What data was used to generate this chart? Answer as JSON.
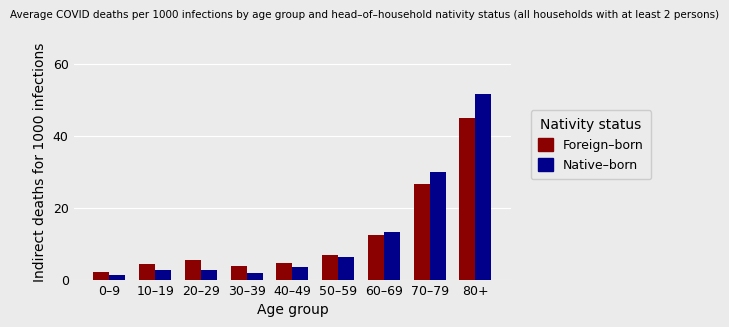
{
  "title": "Average COVID deaths per 1000 infections by age group and head–of–household nativity status (all households with at least 2 persons)",
  "xlabel": "Age group",
  "ylabel": "Indirect deaths for 1000 infections",
  "age_groups": [
    "0–9",
    "10–19",
    "20–29",
    "30–39",
    "40–49",
    "50–59",
    "60–69",
    "70–79",
    "80+"
  ],
  "foreign_born": [
    2.0,
    4.2,
    5.5,
    3.8,
    4.6,
    6.8,
    12.5,
    26.5,
    45.0
  ],
  "native_born": [
    1.2,
    2.6,
    2.8,
    1.8,
    3.5,
    6.2,
    13.2,
    30.0,
    51.5
  ],
  "color_foreign": "#8B0000",
  "color_native": "#00008B",
  "legend_title": "Nativity status",
  "legend_labels": [
    "Foreign–born",
    "Native–born"
  ],
  "ylim": [
    0,
    65
  ],
  "yticks": [
    0,
    20,
    40,
    60
  ],
  "background_color": "#EBEBEB",
  "grid_color": "#FFFFFF",
  "bar_width": 0.35,
  "title_fontsize": 7.5,
  "axis_label_fontsize": 10,
  "tick_fontsize": 9,
  "legend_fontsize": 9,
  "legend_title_fontsize": 10
}
